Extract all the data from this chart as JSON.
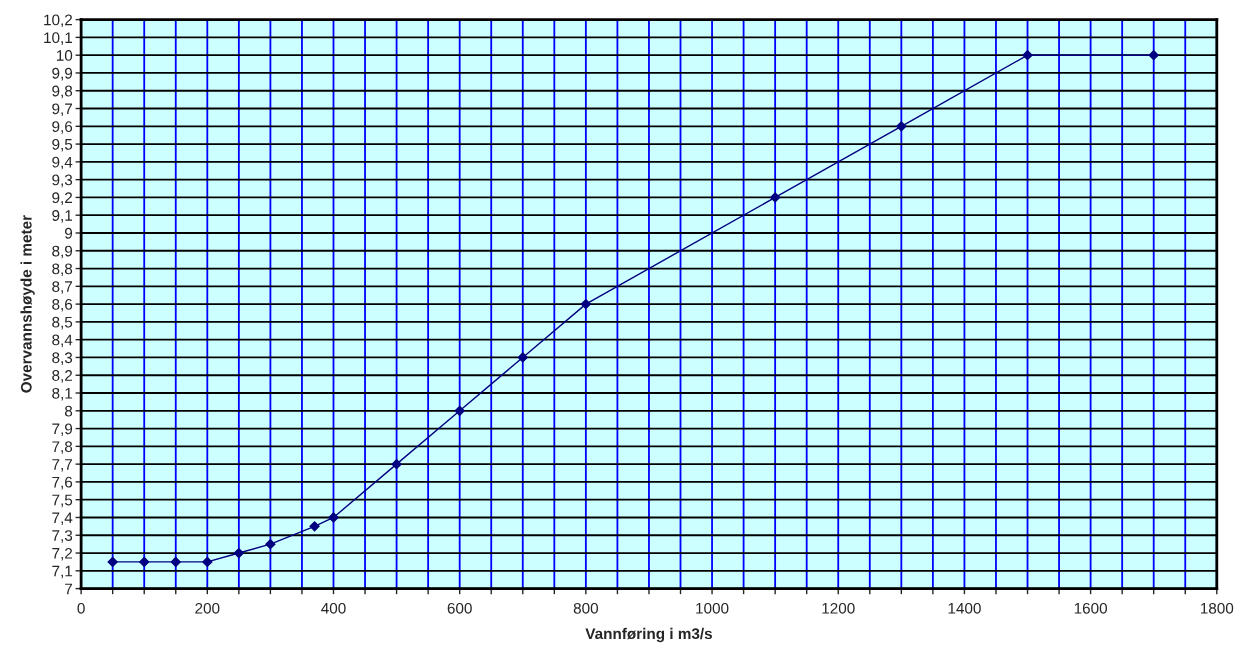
{
  "chart_data": {
    "type": "line",
    "xlabel": "Vannføring i m3/s",
    "ylabel": "Overvannshøyde i meter",
    "x": [
      50,
      100,
      150,
      200,
      250,
      300,
      370,
      400,
      500,
      600,
      700,
      800,
      1100,
      1300,
      1500,
      1700
    ],
    "series": [
      {
        "color": "#000080",
        "values": [
          7.15,
          7.15,
          7.15,
          7.15,
          7.2,
          7.25,
          7.35,
          7.4,
          7.7,
          8.0,
          8.3,
          8.6,
          9.2,
          9.6,
          10.0,
          10.0
        ]
      }
    ],
    "xlim": [
      0,
      1800
    ],
    "xticks": [
      0,
      {
        "value": 50,
        "label": null
      },
      {
        "value": 100,
        "label": null
      },
      {
        "value": 150,
        "label": null
      },
      200,
      {
        "value": 250,
        "label": null
      },
      {
        "value": 300,
        "label": null
      },
      {
        "value": 350,
        "label": null
      },
      400,
      {
        "value": 450,
        "label": null
      },
      {
        "value": 500,
        "label": null
      },
      {
        "value": 550,
        "label": null
      },
      600,
      {
        "value": 650,
        "label": null
      },
      {
        "value": 700,
        "label": null
      },
      {
        "value": 750,
        "label": null
      },
      800,
      {
        "value": 850,
        "label": null
      },
      {
        "value": 900,
        "label": null
      },
      {
        "value": 950,
        "label": null
      },
      1000,
      {
        "value": 1050,
        "label": null
      },
      {
        "value": 1100,
        "label": null
      },
      {
        "value": 1150,
        "label": null
      },
      1200,
      {
        "value": 1250,
        "label": null
      },
      {
        "value": 1300,
        "label": null
      },
      {
        "value": 1350,
        "label": null
      },
      1400,
      {
        "value": 1450,
        "label": null
      },
      {
        "value": 1500,
        "label": null
      },
      {
        "value": 1550,
        "label": null
      },
      1600,
      {
        "value": 1650,
        "label": null
      },
      {
        "value": 1700,
        "label": null
      },
      {
        "value": 1750,
        "label": null
      },
      1800
    ],
    "ylim": [
      7,
      10.2
    ],
    "yticks": [
      7,
      {
        "value": 7.1,
        "label": "7,1"
      },
      {
        "value": 7.2,
        "label": "7,2"
      },
      {
        "value": 7.3,
        "label": "7,3"
      },
      {
        "value": 7.4,
        "label": "7,4"
      },
      {
        "value": 7.5,
        "label": "7,5"
      },
      {
        "value": 7.6,
        "label": "7,6"
      },
      {
        "value": 7.7,
        "label": "7,7"
      },
      {
        "value": 7.8,
        "label": "7,8"
      },
      {
        "value": 7.9,
        "label": "7,9"
      },
      8,
      {
        "value": 8.1,
        "label": "8,1"
      },
      {
        "value": 8.2,
        "label": "8,2"
      },
      {
        "value": 8.3,
        "label": "8,3"
      },
      {
        "value": 8.4,
        "label": "8,4"
      },
      {
        "value": 8.5,
        "label": "8,5"
      },
      {
        "value": 8.6,
        "label": "8,6"
      },
      {
        "value": 8.7,
        "label": "8,7"
      },
      {
        "value": 8.8,
        "label": "8,8"
      },
      {
        "value": 8.9,
        "label": "8,9"
      },
      9,
      {
        "value": 9.1,
        "label": "9,1"
      },
      {
        "value": 9.2,
        "label": "9,2"
      },
      {
        "value": 9.3,
        "label": "9,3"
      },
      {
        "value": 9.4,
        "label": "9,4"
      },
      {
        "value": 9.5,
        "label": "9,5"
      },
      {
        "value": 9.6,
        "label": "9,6"
      },
      {
        "value": 9.7,
        "label": "9,7"
      },
      {
        "value": 9.8,
        "label": "9,8"
      },
      {
        "value": 9.9,
        "label": "9,9"
      },
      10,
      {
        "value": 10.1,
        "label": "10,1"
      },
      {
        "value": 10.2,
        "label": "10,2"
      }
    ],
    "grid": true,
    "marker": "diamond",
    "line_style": "solid"
  }
}
